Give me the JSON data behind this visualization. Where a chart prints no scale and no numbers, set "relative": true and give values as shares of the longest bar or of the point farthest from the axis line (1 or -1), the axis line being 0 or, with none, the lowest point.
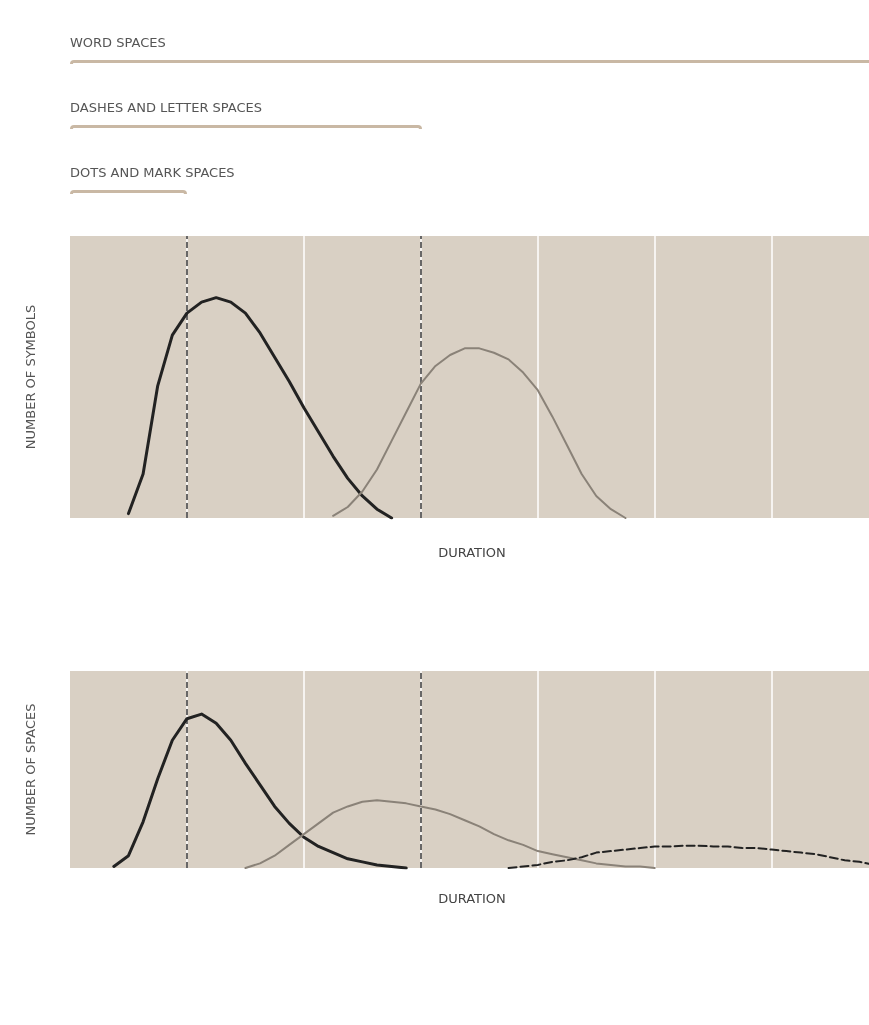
{
  "chart_data": [
    {
      "type": "line",
      "relative": true,
      "xlabel": "DURATION",
      "ylabel": "NUMBER OF SYMBOLS",
      "grid": "x",
      "marker": "none",
      "annotations": [
        "WORD SPACES",
        "DASHES AND LETTER SPACES",
        "DOTS AND MARK SPACES"
      ],
      "categories": [
        null,
        null,
        null,
        null,
        null,
        null,
        null,
        null,
        null,
        null,
        null,
        null,
        null,
        null,
        null,
        null,
        null,
        null,
        null,
        null,
        null,
        null,
        null,
        null,
        null,
        null,
        null,
        null,
        null,
        null,
        null,
        null,
        null,
        null,
        null,
        null,
        null,
        null,
        null,
        null,
        null,
        null,
        null,
        null,
        null,
        null,
        null,
        null,
        null,
        null,
        null,
        null,
        null,
        null,
        null,
        null
      ],
      "series": [
        {
          "color": "#222222",
          "values": [
            null,
            null,
            null,
            null,
            0.02,
            0.2,
            0.6,
            0.83,
            0.93,
            0.98,
            1,
            0.98,
            0.93,
            0.84,
            0.73,
            0.62,
            0.5,
            0.39,
            0.28,
            0.18,
            0.1,
            0.04,
            0,
            null,
            null,
            null,
            null,
            null,
            null,
            null,
            null,
            null,
            null,
            null,
            null,
            null,
            null,
            null,
            null,
            null,
            null,
            null,
            null,
            null,
            null,
            null,
            null,
            null,
            null,
            null,
            null,
            null,
            null,
            null,
            null,
            null
          ]
        },
        {
          "color": "#8a8278",
          "values": [
            null,
            null,
            null,
            null,
            null,
            null,
            null,
            null,
            null,
            null,
            null,
            null,
            null,
            null,
            null,
            null,
            null,
            null,
            0.01,
            0.05,
            0.12,
            0.22,
            0.35,
            0.48,
            0.61,
            0.69,
            0.74,
            0.77,
            0.77,
            0.75,
            0.72,
            0.66,
            0.58,
            0.46,
            0.33,
            0.2,
            0.1,
            0.04,
            0,
            null,
            null,
            null,
            null,
            null,
            null,
            null,
            null,
            null,
            null,
            null,
            null,
            null,
            null,
            null,
            null,
            null
          ]
        }
      ]
    },
    {
      "type": "line",
      "relative": true,
      "xlabel": "DURATION",
      "ylabel": "NUMBER OF SPACES",
      "grid": "x",
      "marker": "none",
      "categories": [
        null,
        null,
        null,
        null,
        null,
        null,
        null,
        null,
        null,
        null,
        null,
        null,
        null,
        null,
        null,
        null,
        null,
        null,
        null,
        null,
        null,
        null,
        null,
        null,
        null,
        null,
        null,
        null,
        null,
        null,
        null,
        null,
        null,
        null,
        null,
        null,
        null,
        null,
        null,
        null,
        null,
        null,
        null,
        null,
        null,
        null,
        null,
        null,
        null,
        null,
        null,
        null,
        null,
        null,
        null,
        null
      ],
      "series": [
        {
          "color": "#222222",
          "values": [
            null,
            null,
            null,
            0.01,
            0.08,
            0.3,
            0.58,
            0.83,
            0.97,
            1,
            0.94,
            0.83,
            0.68,
            0.54,
            0.4,
            0.29,
            0.2,
            0.14,
            0.1,
            0.06,
            0.04,
            0.02,
            0.01,
            0,
            null,
            null,
            null,
            null,
            null,
            null,
            null,
            null,
            null,
            null,
            null,
            null,
            null,
            null,
            null,
            null,
            null,
            null,
            null,
            null,
            null,
            null,
            null,
            null,
            null,
            null,
            null,
            null,
            null,
            null,
            null,
            null
          ]
        },
        {
          "color": "#8a8278",
          "values": [
            null,
            null,
            null,
            null,
            null,
            null,
            null,
            null,
            null,
            null,
            null,
            null,
            0,
            0.03,
            0.08,
            0.15,
            0.22,
            0.29,
            0.36,
            0.4,
            0.43,
            0.44,
            0.43,
            0.42,
            0.4,
            0.38,
            0.35,
            0.31,
            0.27,
            0.22,
            0.18,
            0.15,
            0.11,
            0.09,
            0.07,
            0.05,
            0.03,
            0.02,
            0.01,
            0.01,
            0,
            null,
            null,
            null,
            null,
            null,
            null,
            null,
            null,
            null,
            null,
            null,
            null,
            null,
            null,
            null
          ]
        },
        {
          "color": "#222222",
          "line_style": "dashed",
          "values": [
            null,
            null,
            null,
            null,
            null,
            null,
            null,
            null,
            null,
            null,
            null,
            null,
            null,
            null,
            null,
            null,
            null,
            null,
            null,
            null,
            null,
            null,
            null,
            null,
            null,
            null,
            null,
            null,
            null,
            null,
            0,
            0.01,
            0.02,
            0.04,
            0.05,
            0.07,
            0.1,
            0.11,
            0.12,
            0.13,
            0.14,
            0.14,
            0.145,
            0.145,
            0.14,
            0.14,
            0.13,
            0.13,
            0.12,
            0.11,
            0.1,
            0.09,
            0.07,
            0.05,
            0.04,
            0.02
          ]
        }
      ]
    }
  ]
}
